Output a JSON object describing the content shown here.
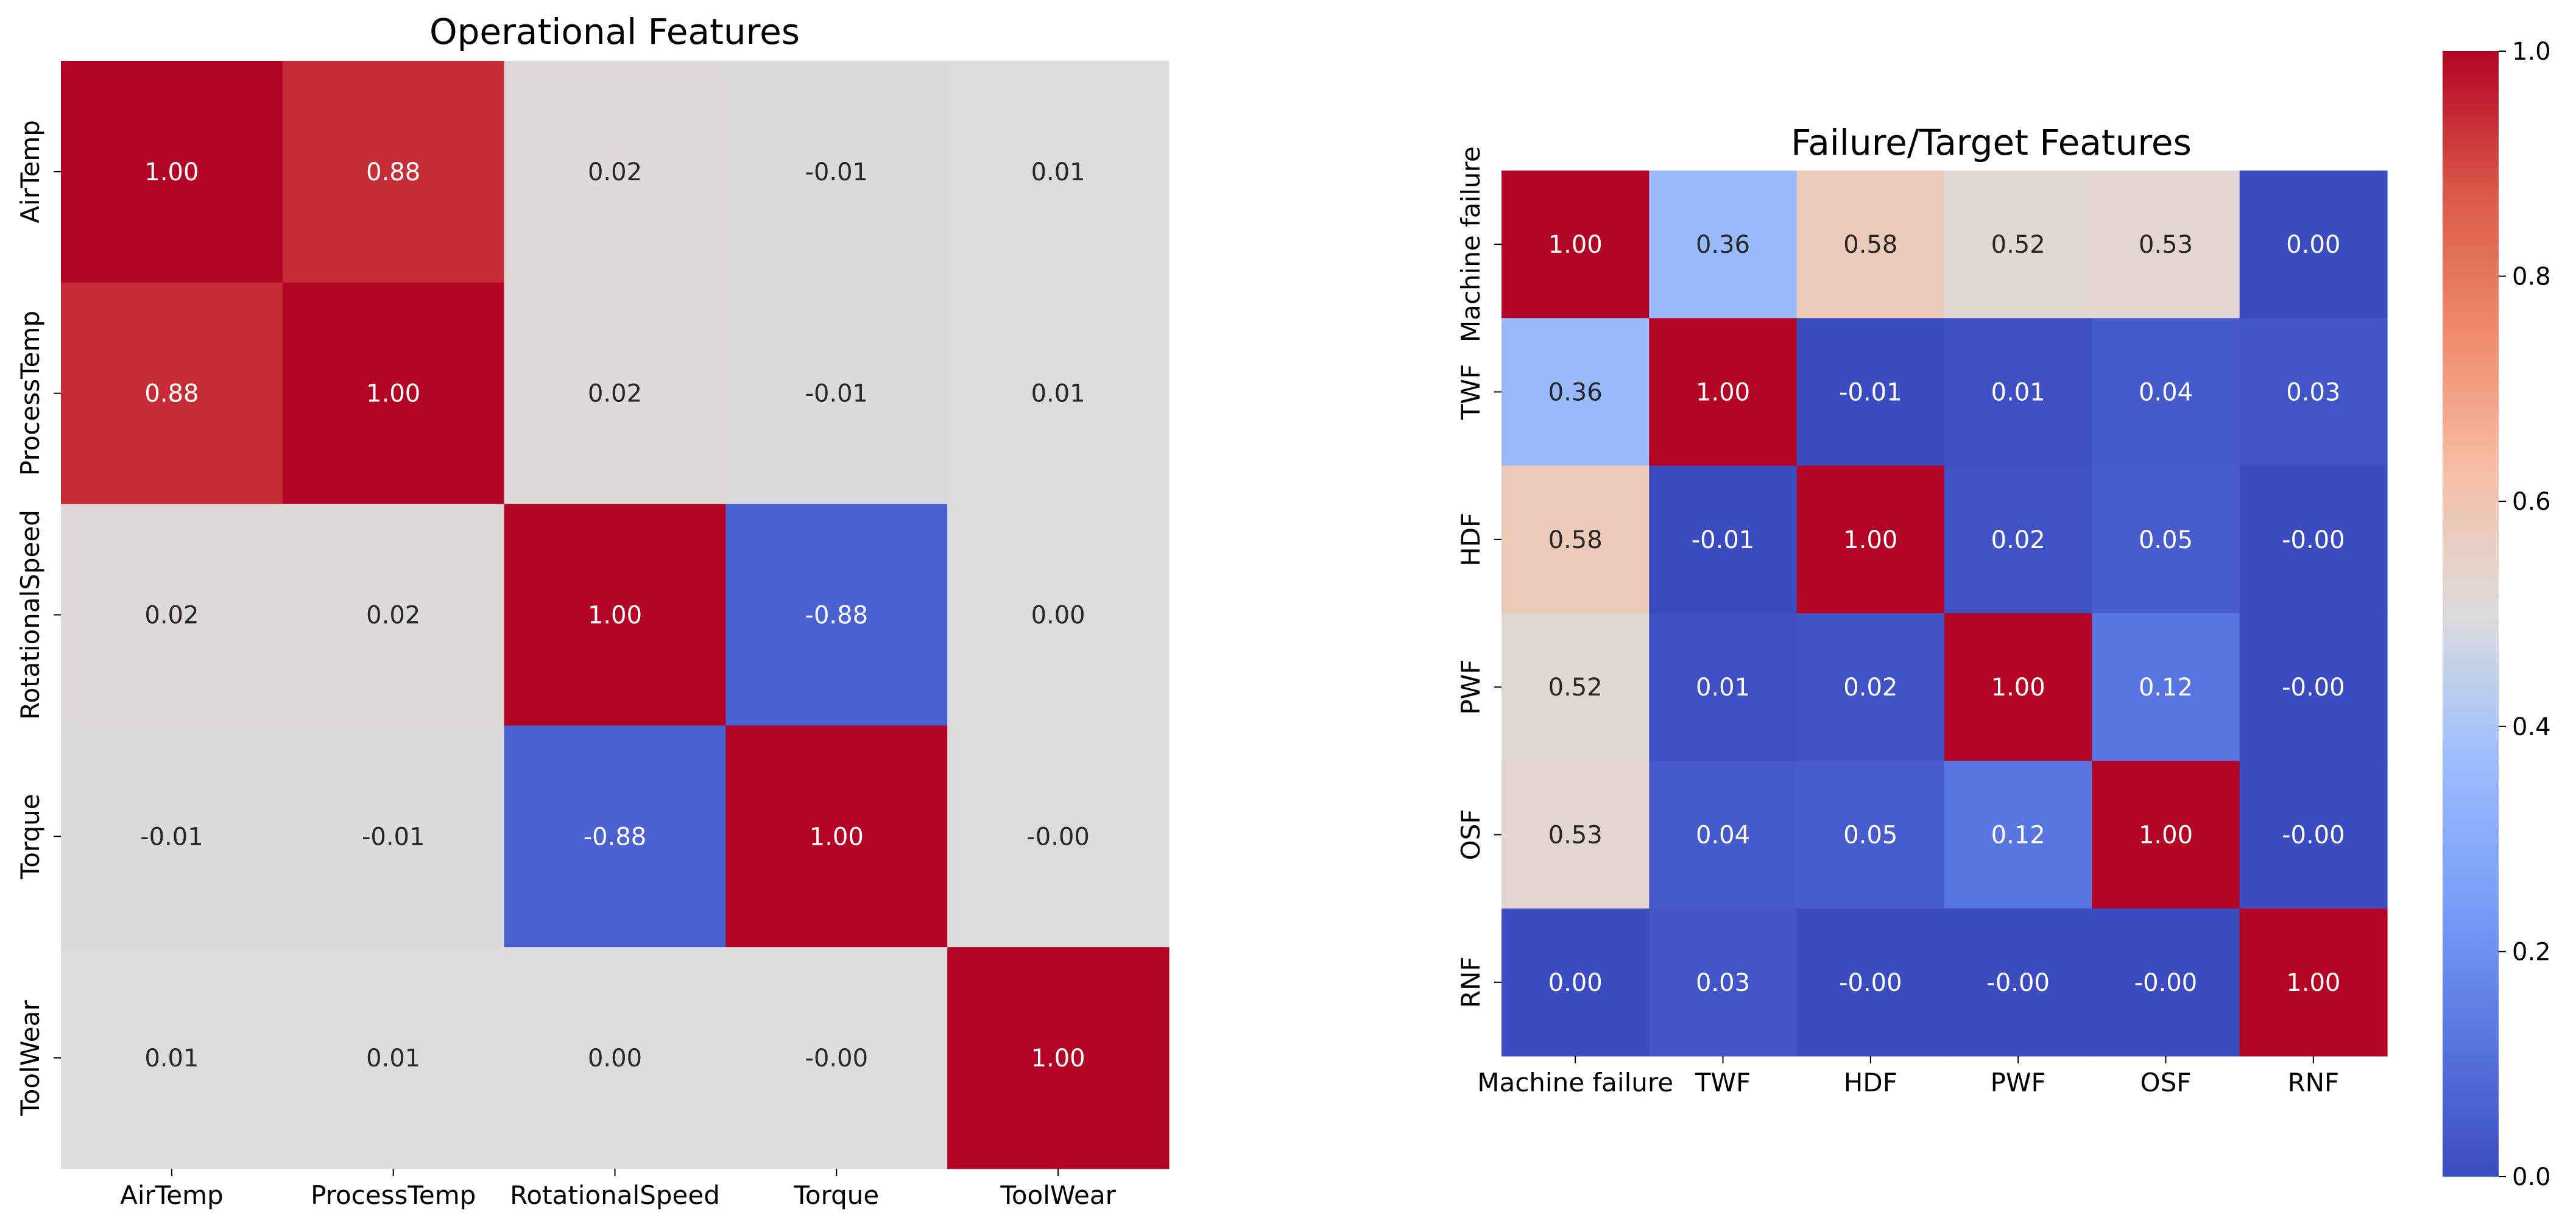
{
  "chart_data": [
    {
      "type": "heatmap",
      "title": "Operational Features",
      "xlabel": "",
      "ylabel": "",
      "x_categories": [
        "AirTemp",
        "ProcessTemp",
        "RotationalSpeed",
        "Torque",
        "ToolWear"
      ],
      "y_categories": [
        "AirTemp",
        "ProcessTemp",
        "RotationalSpeed",
        "Torque",
        "ToolWear"
      ],
      "values": [
        [
          1.0,
          0.88,
          0.02,
          -0.01,
          0.01
        ],
        [
          0.88,
          1.0,
          0.02,
          -0.01,
          0.01
        ],
        [
          0.02,
          0.02,
          1.0,
          -0.88,
          0.0
        ],
        [
          -0.01,
          -0.01,
          -0.88,
          1.0,
          -0.0
        ],
        [
          0.01,
          0.01,
          0.0,
          -0.0,
          1.0
        ]
      ],
      "value_format": "0.00",
      "colormap": "coolwarm",
      "vmin": -1,
      "vmax": 1,
      "colorbar": false
    },
    {
      "type": "heatmap",
      "title": "Failure/Target Features",
      "xlabel": "",
      "ylabel": "",
      "x_categories": [
        "Machine failure",
        "TWF",
        "HDF",
        "PWF",
        "OSF",
        "RNF"
      ],
      "y_categories": [
        "Machine failure",
        "TWF",
        "HDF",
        "PWF",
        "OSF",
        "RNF"
      ],
      "values": [
        [
          1.0,
          0.36,
          0.58,
          0.52,
          0.53,
          0.0
        ],
        [
          0.36,
          1.0,
          -0.01,
          0.01,
          0.04,
          0.03
        ],
        [
          0.58,
          -0.01,
          1.0,
          0.02,
          0.05,
          -0.0
        ],
        [
          0.52,
          0.01,
          0.02,
          1.0,
          0.12,
          -0.0
        ],
        [
          0.53,
          0.04,
          0.05,
          0.12,
          1.0,
          -0.0
        ],
        [
          0.0,
          0.03,
          -0.0,
          -0.0,
          -0.0,
          1.0
        ]
      ],
      "value_format": "0.00",
      "colormap": "coolwarm",
      "vmin": 0,
      "vmax": 1,
      "colorbar": true,
      "colorbar_ticks": [
        "0.0",
        "0.2",
        "0.4",
        "0.6",
        "0.8",
        "1.0"
      ],
      "colorbar_tick_values": [
        0.0,
        0.2,
        0.4,
        0.6,
        0.8,
        1.0
      ]
    }
  ]
}
